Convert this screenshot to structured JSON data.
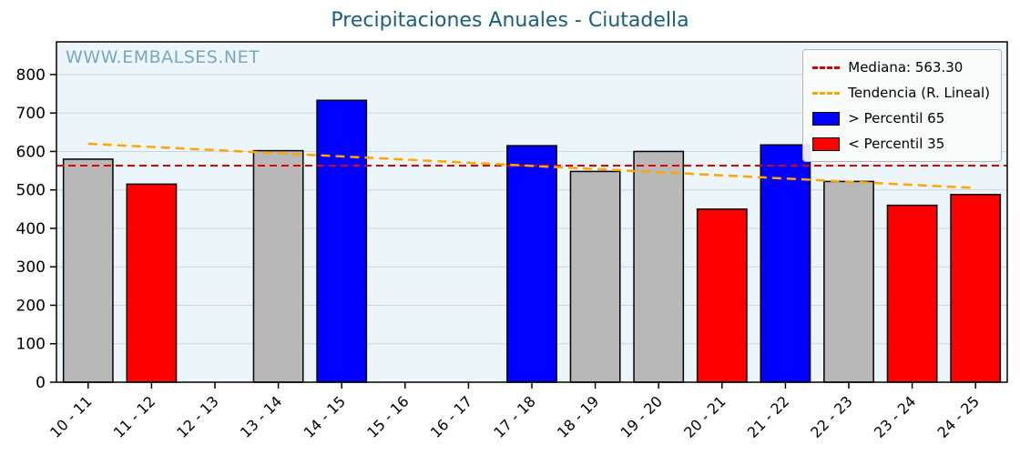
{
  "title": "Precipitaciones Anuales - Ciutadella",
  "watermark": "WWW.EMBALSES.NET",
  "legend": {
    "median_label": "Mediana: 563.30",
    "trend_label": "Tendencia (R. Lineal)",
    "p65_label": "> Percentil 65",
    "p35_label": "< Percentil 35"
  },
  "colors": {
    "title": "#1b5e7d",
    "watermark": "#7aa6c2",
    "plot_bg": "#ecf5f9",
    "grid": "#c9d6dc",
    "axis": "#000000",
    "median": "#e00000",
    "trend": "#ffa500",
    "p65": "#0000ff",
    "p35": "#ff0000",
    "mid": "#b8b8b8"
  },
  "chart_data": {
    "type": "bar",
    "title": "Precipitaciones Anuales - Ciutadella",
    "categories": [
      "10 - 11",
      "11 - 12",
      "12 - 13",
      "13 - 14",
      "14 - 15",
      "15 - 16",
      "16 - 17",
      "17 - 18",
      "18 - 19",
      "19 - 20",
      "20 - 21",
      "21 - 22",
      "22 - 23",
      "23 - 24",
      "24 - 25"
    ],
    "values": [
      580,
      515,
      0,
      602,
      733,
      0,
      0,
      615,
      548,
      600,
      450,
      617,
      522,
      460,
      488
    ],
    "bar_status": [
      "mid",
      "p35",
      "none",
      "mid",
      "p65",
      "none",
      "none",
      "p65",
      "mid",
      "mid",
      "p35",
      "p65",
      "mid",
      "p35",
      "p35"
    ],
    "median": 563.3,
    "trend_line": {
      "start_value": 620,
      "end_value": 505
    },
    "ylim": [
      0,
      885
    ],
    "yticks": [
      0,
      100,
      200,
      300,
      400,
      500,
      600,
      700,
      800
    ],
    "xlabel": "",
    "ylabel": "",
    "grid": true,
    "legend_position": "upper right"
  }
}
